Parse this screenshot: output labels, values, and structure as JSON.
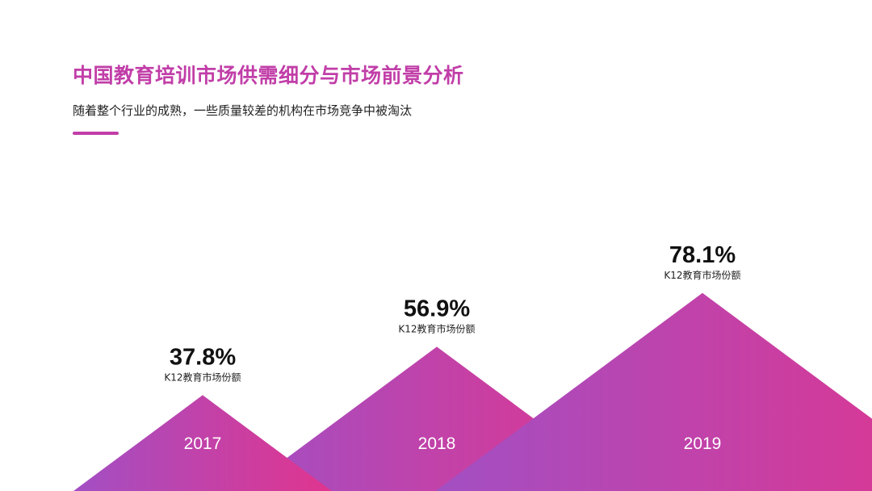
{
  "slide": {
    "title": "中国教育培训市场供需细分与市场前景分析",
    "subtitle": "随着整个行业的成熟，一些质量较差的机构在市场竞争中被淘汰"
  },
  "colors": {
    "accent": "#c13ea8",
    "gradient_start": "#a24fc4",
    "gradient_end": "#e0358e"
  },
  "chart_data": {
    "type": "bar",
    "mark_shape": "triangle",
    "categories": [
      "2017",
      "2018",
      "2019"
    ],
    "values": [
      37.8,
      56.9,
      78.1
    ],
    "value_labels": [
      "37.8%",
      "56.9%",
      "78.1%"
    ],
    "series_label": "K12教育市场份额",
    "unit": "%",
    "grid": false,
    "legend": "none"
  }
}
